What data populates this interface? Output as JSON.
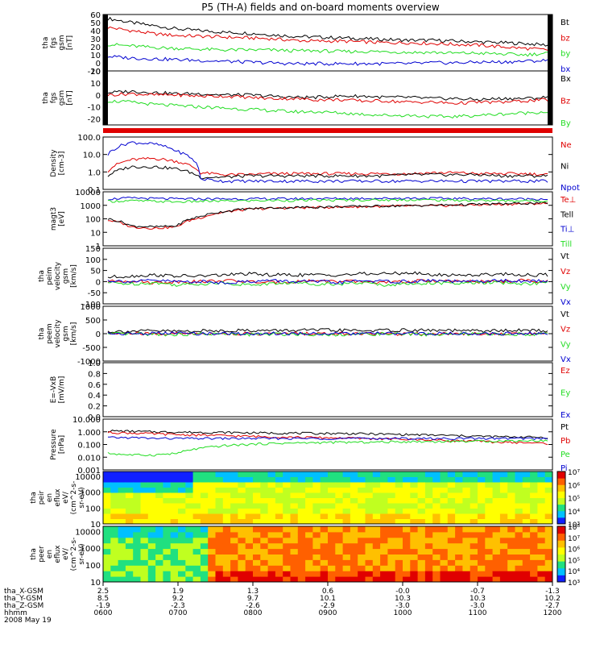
{
  "title": "P5 (TH-A) fields and on-board moments overview",
  "colors": {
    "black": "#000000",
    "red": "#e00000",
    "green": "#22dd22",
    "blue": "#0000d0"
  },
  "chart_data": [
    {
      "type": "line",
      "ylabel": [
        "tha",
        "fgs",
        "gsm",
        "[nT]"
      ],
      "ylim": [
        -10,
        60
      ],
      "ticks": [
        "-10",
        "0",
        "10",
        "20",
        "30",
        "40",
        "50",
        "60"
      ],
      "series": [
        {
          "name": "Bt",
          "color": "black",
          "values": [
            55,
            50,
            46,
            42,
            40,
            38,
            37,
            35,
            33,
            32,
            31,
            30,
            29,
            28,
            28,
            27,
            26,
            25,
            24,
            22
          ]
        },
        {
          "name": "bz",
          "color": "red",
          "values": [
            44,
            40,
            36,
            34,
            33,
            32,
            31,
            30,
            28,
            27,
            27,
            26,
            25,
            25,
            24,
            23,
            22,
            20,
            18,
            16
          ]
        },
        {
          "name": "by",
          "color": "green",
          "values": [
            23,
            21,
            19,
            18,
            17,
            16,
            16,
            16,
            15,
            15,
            14,
            14,
            14,
            13,
            13,
            12,
            12,
            11,
            10,
            12
          ]
        },
        {
          "name": "bx",
          "color": "blue",
          "values": [
            8,
            6,
            5,
            4,
            3,
            2,
            1,
            0,
            -1,
            -1,
            -1,
            -1,
            -1,
            -1,
            0,
            0,
            1,
            1,
            2,
            3
          ]
        }
      ]
    },
    {
      "type": "line",
      "ylabel": [
        "tha",
        "fgs",
        "gsm",
        "[nT]"
      ],
      "ylim": [
        -25,
        20
      ],
      "ticks": [
        "-20",
        "-10",
        "0",
        "10",
        "20"
      ],
      "series": [
        {
          "name": "Bx",
          "color": "black",
          "values": [
            2,
            3,
            2,
            1,
            1,
            0,
            0,
            -1,
            -2,
            -2,
            -1,
            -1,
            -2,
            -2,
            -3,
            -3,
            -4,
            -3,
            -3,
            -2
          ]
        },
        {
          "name": "Bz",
          "color": "red",
          "values": [
            0,
            1,
            0,
            0,
            -1,
            -1,
            -2,
            -3,
            -3,
            -4,
            -4,
            -5,
            -5,
            -6,
            -6,
            -7,
            -6,
            -6,
            -5,
            -4
          ]
        },
        {
          "name": "By",
          "color": "green",
          "values": [
            -5,
            -6,
            -8,
            -9,
            -10,
            -11,
            -12,
            -13,
            -14,
            -14,
            -15,
            -16,
            -17,
            -17,
            -18,
            -18,
            -17,
            -16,
            -15,
            -14
          ]
        }
      ]
    },
    {
      "type": "line",
      "ylabel": [
        "Density",
        "[cm-3]"
      ],
      "ylim": [
        0.1,
        100
      ],
      "scale": "log",
      "ticks": [
        "0.1",
        "1.0",
        "10.0",
        "100.0"
      ],
      "series": [
        {
          "name": "Ne",
          "color": "red",
          "values": [
            1.2,
            5,
            6,
            4,
            0.9,
            0.7,
            0.7,
            0.8,
            0.8,
            0.8,
            0.8,
            0.8,
            0.8,
            0.8,
            0.9,
            0.9,
            0.8,
            0.8,
            0.8,
            0.7
          ]
        },
        {
          "name": "Ni",
          "color": "black",
          "values": [
            0.6,
            2,
            2,
            1.5,
            0.5,
            0.5,
            0.6,
            0.6,
            0.6,
            0.6,
            0.6,
            0.6,
            0.6,
            0.7,
            0.7,
            0.7,
            0.7,
            0.6,
            0.6,
            0.6
          ]
        },
        {
          "name": "Npot",
          "color": "blue",
          "values": [
            10,
            50,
            40,
            15,
            0.4,
            0.3,
            0.3,
            0.3,
            0.3,
            0.3,
            0.3,
            0.3,
            0.3,
            0.3,
            0.3,
            0.3,
            0.3,
            0.3,
            0.3,
            0.3
          ]
        }
      ]
    },
    {
      "type": "line",
      "ylabel": [
        "magt3",
        "[eV]"
      ],
      "ylim": [
        1,
        10000
      ],
      "scale": "log",
      "ticks": [
        "1",
        "10",
        "100",
        "1000",
        "10000"
      ],
      "series": [
        {
          "name": "Te⊥",
          "color": "red",
          "values": [
            80,
            25,
            20,
            25,
            120,
            300,
            500,
            600,
            650,
            700,
            750,
            800,
            850,
            900,
            900,
            1000,
            1100,
            1200,
            1300,
            1400
          ]
        },
        {
          "name": "Tell",
          "color": "black",
          "values": [
            100,
            30,
            25,
            30,
            150,
            350,
            550,
            650,
            700,
            750,
            800,
            850,
            900,
            950,
            1000,
            1100,
            1200,
            1300,
            1400,
            1500
          ]
        },
        {
          "name": "Ti⊥",
          "color": "blue",
          "values": [
            3000,
            3500,
            3200,
            3000,
            3000,
            3000,
            3000,
            3100,
            3100,
            3200,
            3200,
            3300,
            3300,
            3400,
            3300,
            3200,
            3100,
            3000,
            3000,
            3000
          ]
        },
        {
          "name": "Till",
          "color": "green",
          "values": [
            2000,
            2200,
            2000,
            1800,
            2000,
            2100,
            2200,
            2300,
            2300,
            2400,
            2400,
            2500,
            2500,
            2600,
            2500,
            2400,
            2300,
            2200,
            2200,
            2200
          ]
        }
      ]
    },
    {
      "type": "line",
      "ylabel": [
        "tha",
        "peim",
        "velocity",
        "gsm",
        "[km/s]"
      ],
      "ylim": [
        -100,
        150
      ],
      "ticks": [
        "-100",
        "-50",
        "0",
        "50",
        "100",
        "150"
      ],
      "series": [
        {
          "name": "Vt",
          "color": "black",
          "values": [
            20,
            25,
            30,
            25,
            25,
            30,
            35,
            30,
            30,
            30,
            30,
            35,
            35,
            40,
            30,
            30,
            30,
            35,
            30,
            30
          ]
        },
        {
          "name": "Vz",
          "color": "red",
          "values": [
            0,
            5,
            -5,
            0,
            0,
            5,
            0,
            -5,
            0,
            5,
            0,
            0,
            -5,
            0,
            5,
            0,
            0,
            0,
            5,
            0
          ]
        },
        {
          "name": "Vy",
          "color": "green",
          "values": [
            -5,
            -10,
            -5,
            -15,
            -10,
            -5,
            -15,
            -10,
            -5,
            -10,
            -10,
            -5,
            -15,
            -10,
            -5,
            -10,
            -5,
            -5,
            -10,
            -5
          ]
        },
        {
          "name": "Vx",
          "color": "blue",
          "values": [
            5,
            0,
            5,
            0,
            0,
            -5,
            0,
            5,
            0,
            0,
            -5,
            5,
            0,
            0,
            5,
            0,
            0,
            5,
            0,
            5
          ]
        }
      ]
    },
    {
      "type": "line",
      "ylabel": [
        "tha",
        "peem",
        "velocity",
        "gsm",
        "[km/s]"
      ],
      "ylim": [
        -1000,
        1000
      ],
      "ticks": [
        "-1000",
        "-500",
        "0",
        "500",
        "1000"
      ],
      "series": [
        {
          "name": "Vt",
          "color": "black",
          "values": [
            80,
            90,
            100,
            90,
            100,
            110,
            120,
            110,
            120,
            130,
            120,
            110,
            120,
            130,
            120,
            110,
            100,
            110,
            120,
            110
          ]
        },
        {
          "name": "Vz",
          "color": "red",
          "values": [
            0,
            10,
            -10,
            0,
            10,
            0,
            -10,
            0,
            10,
            0,
            0,
            10,
            -10,
            0,
            0,
            10,
            0,
            -10,
            0,
            0
          ]
        },
        {
          "name": "Vy",
          "color": "green",
          "values": [
            -20,
            -10,
            -20,
            -30,
            -10,
            -20,
            -30,
            -20,
            -10,
            -20,
            -30,
            -20,
            -10,
            -20,
            -30,
            -20,
            -10,
            -20,
            -10,
            -20
          ]
        },
        {
          "name": "Vx",
          "color": "blue",
          "values": [
            10,
            0,
            10,
            20,
            0,
            10,
            0,
            10,
            0,
            10,
            -10,
            0,
            10,
            0,
            10,
            0,
            10,
            0,
            10,
            0
          ]
        }
      ]
    },
    {
      "type": "line",
      "ylabel": [
        "E=-VxB",
        "[mV/m]"
      ],
      "ylim": [
        0,
        1
      ],
      "ticks": [
        "0.0",
        "0.2",
        "0.4",
        "0.6",
        "0.8",
        "1.0"
      ],
      "series": [
        {
          "name": "Ez",
          "color": "red",
          "values": []
        },
        {
          "name": "Ey",
          "color": "green",
          "values": []
        },
        {
          "name": "Ex",
          "color": "blue",
          "values": []
        }
      ]
    },
    {
      "type": "line",
      "ylabel": [
        "Pressure",
        "[nPa]"
      ],
      "ylim": [
        0.001,
        10
      ],
      "scale": "log",
      "ticks": [
        "0.001",
        "0.010",
        "0.100",
        "1.000",
        "10.000"
      ],
      "series": [
        {
          "name": "Pt",
          "color": "black",
          "values": [
            1.2,
            1.1,
            1.0,
            0.95,
            0.9,
            0.9,
            0.85,
            0.8,
            0.8,
            0.75,
            0.75,
            0.7,
            0.65,
            0.6,
            0.55,
            0.5,
            0.45,
            0.4,
            0.4,
            0.35
          ]
        },
        {
          "name": "Pb",
          "color": "red",
          "values": [
            0.9,
            0.8,
            0.7,
            0.6,
            0.55,
            0.5,
            0.45,
            0.4,
            0.38,
            0.35,
            0.33,
            0.3,
            0.28,
            0.25,
            0.23,
            0.2,
            0.18,
            0.15,
            0.14,
            0.12
          ]
        },
        {
          "name": "Pe",
          "color": "green",
          "values": [
            0.02,
            0.015,
            0.015,
            0.02,
            0.05,
            0.08,
            0.1,
            0.12,
            0.13,
            0.14,
            0.15,
            0.15,
            0.16,
            0.17,
            0.17,
            0.18,
            0.18,
            0.19,
            0.2,
            0.2
          ]
        },
        {
          "name": "Pi",
          "color": "blue",
          "values": [
            0.35,
            0.35,
            0.3,
            0.3,
            0.3,
            0.3,
            0.3,
            0.3,
            0.3,
            0.3,
            0.3,
            0.3,
            0.3,
            0.3,
            0.3,
            0.3,
            0.3,
            0.3,
            0.3,
            0.3
          ]
        }
      ]
    },
    {
      "type": "heatmap",
      "ylabel": [
        "tha",
        "peir",
        "en",
        "eflux",
        "eV/",
        "(cm^2-s-",
        "sr-eV)"
      ],
      "ylim": [
        10,
        20000
      ],
      "scale": "log",
      "ticks": [
        "10",
        "100",
        "1000",
        "10000"
      ],
      "colorbar": [
        "10³",
        "10⁴",
        "10⁵",
        "10⁶",
        "10⁷"
      ]
    },
    {
      "type": "heatmap",
      "ylabel": [
        "tha",
        "peer",
        "en",
        "eflux",
        "eV/",
        "(cm^2-s-",
        "sr-eV)"
      ],
      "ylim": [
        10,
        20000
      ],
      "scale": "log",
      "ticks": [
        "10",
        "100",
        "1000",
        "10000"
      ],
      "colorbar": [
        "10³",
        "10⁴",
        "10⁵",
        "10⁶",
        "10⁷",
        "10⁸"
      ]
    }
  ],
  "xaxis": {
    "rows": [
      {
        "label": "tha_X-GSM",
        "values": [
          "2.5",
          "1.9",
          "1.3",
          "0.6",
          "-0.0",
          "-0.7",
          "-1.3"
        ]
      },
      {
        "label": "tha_Y-GSM",
        "values": [
          "8.5",
          "9.2",
          "9.7",
          "10.1",
          "10.3",
          "10.3",
          "10.2"
        ]
      },
      {
        "label": "tha_Z-GSM",
        "values": [
          "-1.9",
          "-2.3",
          "-2.6",
          "-2.9",
          "-3.0",
          "-3.0",
          "-2.7"
        ]
      },
      {
        "label": "hhmm",
        "values": [
          "0600",
          "0700",
          "0800",
          "0900",
          "1000",
          "1100",
          "1200"
        ]
      }
    ],
    "date": "2008 May 19"
  }
}
